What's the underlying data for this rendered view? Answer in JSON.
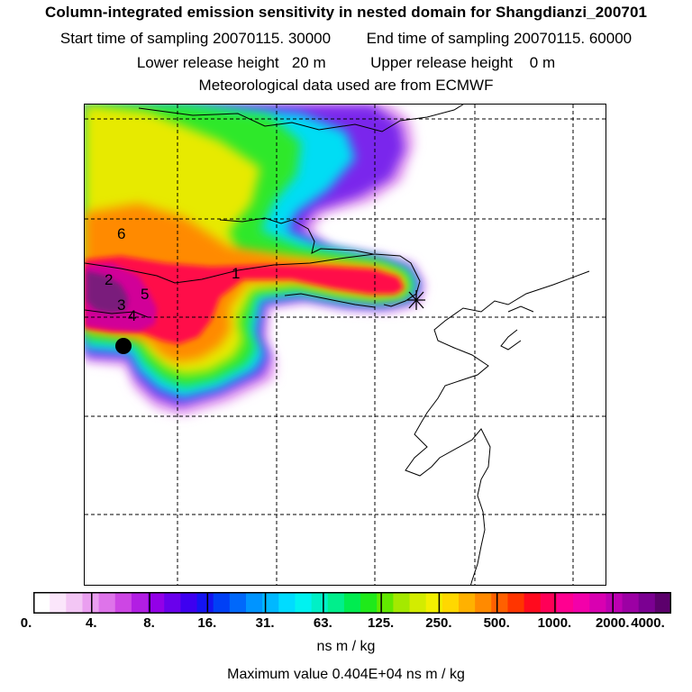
{
  "header": {
    "title": "Column-integrated emission sensitivity in nested domain for Shangdianzi_200701",
    "start_label": "Start time of sampling 20070115. 30000",
    "end_label": "End time of sampling 20070115. 60000",
    "lower_label": "Lower release height   20 m",
    "upper_label": "Upper release height    0 m",
    "met_label": "Meteorological data used are from ECMWF"
  },
  "map": {
    "markers": [
      "1",
      "2",
      "3",
      "4",
      "5",
      "6"
    ],
    "receptor": "receptor-dot",
    "release_point": "star-marker"
  },
  "colorbar": {
    "colors": [
      "#ffffff",
      "#fbe6fb",
      "#f3c6f5",
      "#ea9ff0",
      "#de74ea",
      "#cd46e4",
      "#b21ee3",
      "#9300e8",
      "#6a00ec",
      "#3e00f0",
      "#1414f2",
      "#0040f6",
      "#0068fb",
      "#0094ff",
      "#00b8ff",
      "#00dcff",
      "#00f2f0",
      "#00f0c6",
      "#00ef8c",
      "#00ec50",
      "#1fea1a",
      "#62e900",
      "#a4e900",
      "#d3ec00",
      "#f2ef00",
      "#ffd800",
      "#ffb100",
      "#ff8a00",
      "#ff6000",
      "#ff3500",
      "#ff0a1e",
      "#ff0057",
      "#ff0090",
      "#f300aa",
      "#d900b1",
      "#bd00b2",
      "#9c00a4",
      "#7b0092",
      "#5c006c"
    ],
    "tick_labels": [
      "0.",
      "4.",
      "8.",
      "16.",
      "31.",
      "63.",
      "125.",
      "250.",
      "500.",
      "1000.",
      "2000.",
      "4000."
    ],
    "units": "ns m / kg",
    "max_value_label": "Maximum value  0.404E+04 ns m / kg"
  }
}
